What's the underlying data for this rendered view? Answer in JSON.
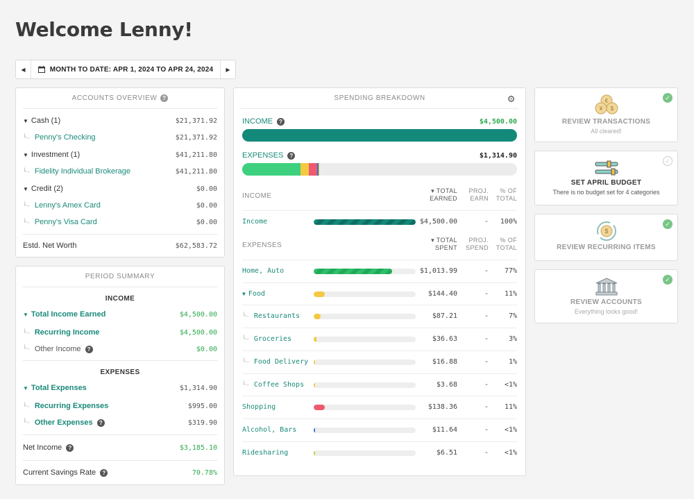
{
  "welcome": "Welcome Lenny!",
  "date_range": {
    "label": "MONTH TO DATE: APR 1, 2024 TO APR 24, 2024"
  },
  "accounts": {
    "title": "ACCOUNTS OVERVIEW",
    "groups": [
      {
        "label": "Cash (1)",
        "amount": "$21,371.92"
      },
      {
        "label": "Penny's Checking",
        "amount": "$21,371.92"
      },
      {
        "label": "Investment (1)",
        "amount": "$41,211.80"
      },
      {
        "label": "Fidelity Individual Brokerage",
        "amount": "$41,211.80"
      },
      {
        "label": "Credit (2)",
        "amount": "$0.00"
      },
      {
        "label": "Lenny's Amex Card",
        "amount": "$0.00"
      },
      {
        "label": "Penny's Visa Card",
        "amount": "$0.00"
      }
    ],
    "net_worth_label": "Estd. Net Worth",
    "net_worth": "$62,583.72"
  },
  "period": {
    "title": "PERIOD SUMMARY",
    "income_head": "INCOME",
    "total_income_label": "Total Income Earned",
    "total_income": "$4,500.00",
    "recurring_income_label": "Recurring Income",
    "recurring_income": "$4,500.00",
    "other_income_label": "Other Income",
    "other_income": "$0.00",
    "expenses_head": "EXPENSES",
    "total_expenses_label": "Total Expenses",
    "total_expenses": "$1,314.90",
    "recurring_expenses_label": "Recurring Expenses",
    "recurring_expenses": "$995.00",
    "other_expenses_label": "Other Expenses",
    "other_expenses": "$319.90",
    "net_income_label": "Net Income",
    "net_income": "$3,185.10",
    "savings_label": "Current Savings Rate",
    "savings": "70.78%"
  },
  "spending": {
    "title": "SPENDING BREAKDOWN",
    "income_label": "INCOME",
    "income_total": "$4,500.00",
    "expenses_label": "EXPENSES",
    "expenses_total": "$1,314.90",
    "income_head": {
      "col": "INCOME",
      "total1": "▾ TOTAL",
      "total2": "EARNED",
      "proj1": "PROJ.",
      "proj2": "EARN",
      "pct1": "% OF",
      "pct2": "TOTAL"
    },
    "expense_head": {
      "col": "EXPENSES",
      "total1": "▾ TOTAL",
      "total2": "SPENT",
      "proj1": "PROJ.",
      "proj2": "SPEND",
      "pct1": "% OF",
      "pct2": "TOTAL"
    },
    "income_rows": [
      {
        "name": "Income",
        "total": "$4,500.00",
        "proj": "-",
        "pct": "100%",
        "fill": 1.0
      }
    ],
    "expense_rows": [
      {
        "name": "Home, Auto",
        "total": "$1,013.99",
        "proj": "-",
        "pct": "77%",
        "fill": 0.77,
        "color": "#2dbf6a"
      },
      {
        "name": "Food",
        "total": "$144.40",
        "proj": "-",
        "pct": "11%",
        "fill": 0.11,
        "color": "#f5c842"
      },
      {
        "name": "Restaurants",
        "total": "$87.21",
        "proj": "-",
        "pct": "7%",
        "fill": 0.07,
        "color": "#f5c842"
      },
      {
        "name": "Groceries",
        "total": "$36.63",
        "proj": "-",
        "pct": "3%",
        "fill": 0.03,
        "color": "#f5c842"
      },
      {
        "name": "Food Delivery",
        "total": "$16.88",
        "proj": "-",
        "pct": "1%",
        "fill": 0.01,
        "color": "#f5c842"
      },
      {
        "name": "Coffee Shops",
        "total": "$3.68",
        "proj": "-",
        "pct": "<1%",
        "fill": 0.005,
        "color": "#f5c842"
      },
      {
        "name": "Shopping",
        "total": "$138.36",
        "proj": "-",
        "pct": "11%",
        "fill": 0.11,
        "color": "#ee5a6f"
      },
      {
        "name": "Alcohol, Bars",
        "total": "$11.64",
        "proj": "-",
        "pct": "<1%",
        "fill": 0.01,
        "color": "#3b6fd8"
      },
      {
        "name": "Ridesharing",
        "total": "$6.51",
        "proj": "-",
        "pct": "<1%",
        "fill": 0.005,
        "color": "#c9cf3a"
      }
    ]
  },
  "cards": [
    {
      "title": "REVIEW TRANSACTIONS",
      "sub": "All cleared!"
    },
    {
      "title": "SET APRIL BUDGET",
      "sub": "There is no budget set for 4 categories"
    },
    {
      "title": "REVIEW RECURRING ITEMS",
      "sub": ""
    },
    {
      "title": "REVIEW ACCOUNTS",
      "sub": "Everything looks good!"
    }
  ],
  "colors": {
    "accent": "#1a8a7a",
    "positive": "#2fa84f",
    "income_bar": "#13897a"
  }
}
